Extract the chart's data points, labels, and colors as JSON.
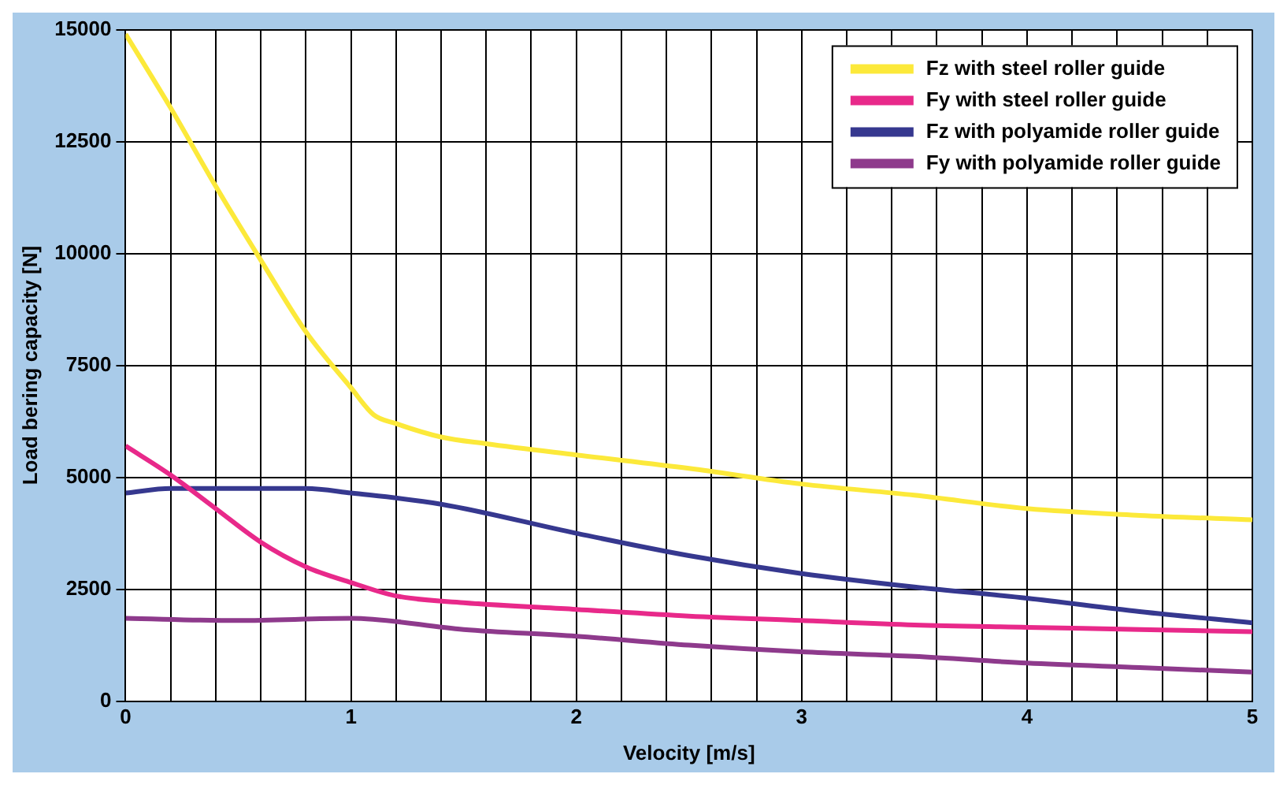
{
  "chart_data": {
    "type": "line",
    "xlabel": "Velocity [m/s]",
    "ylabel": "Load bering capacity [N]",
    "xlim": [
      0,
      5
    ],
    "ylim": [
      0,
      15000
    ],
    "xticks": [
      0,
      {
        "value": 0.2,
        "label": null
      },
      {
        "value": 0.4,
        "label": null
      },
      {
        "value": 0.6,
        "label": null
      },
      {
        "value": 0.8,
        "label": null
      },
      1,
      {
        "value": 1.2,
        "label": null
      },
      {
        "value": 1.4,
        "label": null
      },
      {
        "value": 1.6,
        "label": null
      },
      {
        "value": 1.8,
        "label": null
      },
      2,
      {
        "value": 2.2,
        "label": null
      },
      {
        "value": 2.4,
        "label": null
      },
      {
        "value": 2.6,
        "label": null
      },
      {
        "value": 2.8,
        "label": null
      },
      3,
      {
        "value": 3.2,
        "label": null
      },
      {
        "value": 3.4,
        "label": null
      },
      {
        "value": 3.6,
        "label": null
      },
      {
        "value": 3.8,
        "label": null
      },
      4,
      {
        "value": 4.2,
        "label": null
      },
      {
        "value": 4.4,
        "label": null
      },
      {
        "value": 4.6,
        "label": null
      },
      {
        "value": 4.8,
        "label": null
      },
      5
    ],
    "yticks": [
      0,
      2500,
      5000,
      7500,
      10000,
      12500,
      15000
    ],
    "grid": true,
    "legend": "top right",
    "marker": "none",
    "line_style": "solid",
    "series": [
      {
        "name": "Fz with steel roller guide",
        "color": "#fce93a",
        "x": [
          0,
          0.2,
          0.4,
          0.6,
          0.8,
          1,
          1.1,
          1.2,
          1.4,
          1.6,
          2,
          2.5,
          3,
          3.5,
          4,
          4.5,
          5
        ],
        "values": [
          14900,
          13250,
          11500,
          9850,
          8250,
          7000,
          6400,
          6200,
          5900,
          5750,
          5500,
          5200,
          4850,
          4600,
          4300,
          4150,
          4050
        ]
      },
      {
        "name": "Fy with steel roller guide",
        "color": "#e8298a",
        "x": [
          0,
          0.2,
          0.4,
          0.6,
          0.8,
          1,
          1.2,
          1.5,
          2,
          2.5,
          3,
          3.5,
          4,
          4.5,
          5
        ],
        "values": [
          5700,
          5050,
          4300,
          3550,
          3000,
          2650,
          2350,
          2200,
          2050,
          1900,
          1800,
          1700,
          1650,
          1600,
          1550
        ]
      },
      {
        "name": "Fz with polyamide roller guide",
        "color": "#36388f",
        "x": [
          0,
          0.2,
          0.6,
          0.8,
          1,
          1.4,
          2,
          2.5,
          3,
          3.5,
          4,
          4.5,
          5
        ],
        "values": [
          4650,
          4750,
          4750,
          4750,
          4650,
          4400,
          3750,
          3250,
          2850,
          2550,
          2300,
          2000,
          1750
        ]
      },
      {
        "name": "Fy with polyamide roller guide",
        "color": "#8e3a8c",
        "x": [
          0,
          0.5,
          1,
          1.5,
          2,
          2.5,
          3,
          3.5,
          4,
          4.5,
          5
        ],
        "values": [
          1850,
          1800,
          1850,
          1600,
          1450,
          1250,
          1100,
          1000,
          850,
          750,
          650
        ]
      }
    ]
  }
}
